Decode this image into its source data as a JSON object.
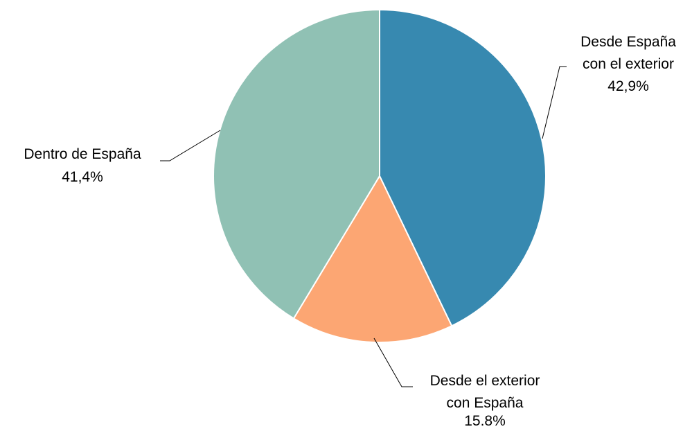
{
  "chart_data": {
    "type": "pie",
    "title": "",
    "slices": [
      {
        "name_lines": [
          "Desde España",
          "con el exterior"
        ],
        "value": 42.9,
        "label": "42,9%",
        "color": "#3789b0"
      },
      {
        "name_lines": [
          "Desde el exterior",
          "con España"
        ],
        "value": 15.8,
        "label": "15.8%",
        "color": "#fca673"
      },
      {
        "name_lines": [
          "Dentro de España"
        ],
        "value": 41.4,
        "label": "41,4%",
        "color": "#90c1b4"
      }
    ],
    "start": "top",
    "direction": "clockwise",
    "legend": "none"
  }
}
